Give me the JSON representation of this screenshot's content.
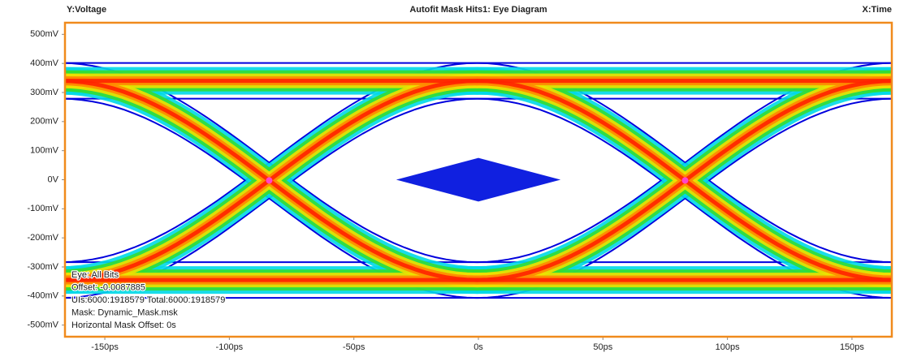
{
  "chart_data": {
    "type": "eye",
    "y_label": "Y:Voltage",
    "title": "Autofit Mask Hits1: Eye Diagram",
    "x_label": "X:Time",
    "xlim": [
      -166,
      166
    ],
    "ylim": [
      -540,
      540
    ],
    "xticks": [
      {
        "value": -150,
        "label": "-150ps"
      },
      {
        "value": -100,
        "label": "-100ps"
      },
      {
        "value": -50,
        "label": "-50ps"
      },
      {
        "value": 0,
        "label": "0s"
      },
      {
        "value": 50,
        "label": "50ps"
      },
      {
        "value": 100,
        "label": "100ps"
      },
      {
        "value": 150,
        "label": "150ps"
      }
    ],
    "yticks": [
      {
        "value": 500,
        "label": "500mV"
      },
      {
        "value": 400,
        "label": "400mV"
      },
      {
        "value": 300,
        "label": "300mV"
      },
      {
        "value": 200,
        "label": "200mV"
      },
      {
        "value": 100,
        "label": "100mV"
      },
      {
        "value": 0,
        "label": "0V"
      },
      {
        "value": -100,
        "label": "-100mV"
      },
      {
        "value": -200,
        "label": "-200mV"
      },
      {
        "value": -300,
        "label": "-300mV"
      },
      {
        "value": -400,
        "label": "-400mV"
      },
      {
        "value": -500,
        "label": "-500mV"
      }
    ],
    "eye": {
      "levels": [
        340,
        -345
      ],
      "crossings": [
        -84,
        83
      ],
      "colors": [
        "#0000dd",
        "#00d8e8",
        "#33dd33",
        "#f0e000",
        "#ff8800",
        "#ff2200"
      ],
      "frame_color": "#f08a1c"
    },
    "mask": {
      "x": [
        -33,
        0,
        33,
        0
      ],
      "y": [
        0,
        75,
        0,
        -75
      ],
      "color": "#1020e0"
    },
    "info": [
      "Eye: All Bits",
      "Offset: -0.0087885",
      "UIs:6000:1918579 Total:6000:1918579",
      "Mask: Dynamic_Mask.msk",
      "Horizontal Mask Offset: 0s"
    ]
  }
}
